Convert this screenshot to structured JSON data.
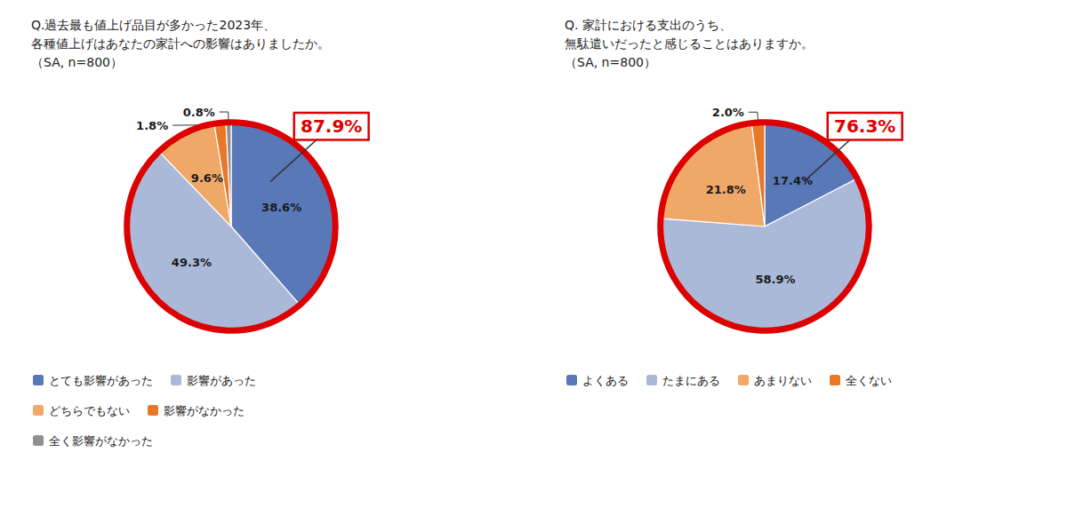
{
  "chart_data": [
    {
      "type": "pie",
      "title": "Q.過去最も値上げ品目が多かった2023年、\n各種値上げはあなたの家計への影響はありましたか。\n（SA, n=800）",
      "categories": [
        "とても影響があった",
        "影響があった",
        "どちらでもない",
        "影響がなかった",
        "全く影響がなかった"
      ],
      "values": [
        38.6,
        49.3,
        9.6,
        1.8,
        0.8
      ],
      "value_labels": [
        "38.6%",
        "49.3%",
        "9.6%",
        "1.8%",
        "0.8%"
      ],
      "colors": [
        "#5878B8",
        "#AAB9D8",
        "#F0A868",
        "#E87828",
        "#909090"
      ],
      "data_labels": true,
      "legend": "bottom",
      "annotations": [
        {
          "text": "87.9%",
          "color": "#DD0000"
        }
      ]
    },
    {
      "type": "pie",
      "title": "Q. 家計における支出のうち、\n無駄遣いだったと感じることはありますか。\n（SA, n=800）",
      "categories": [
        "よくある",
        "たまにある",
        "あまりない",
        "全くない"
      ],
      "values": [
        17.4,
        58.9,
        21.8,
        2.0
      ],
      "value_labels": [
        "17.4%",
        "58.9%",
        "21.8%",
        "2.0%"
      ],
      "colors": [
        "#5878B8",
        "#AAB9D8",
        "#F0A868",
        "#E87828"
      ],
      "data_labels": true,
      "legend": "bottom",
      "annotations": [
        {
          "text": "76.3%",
          "color": "#DD0000"
        }
      ]
    }
  ]
}
